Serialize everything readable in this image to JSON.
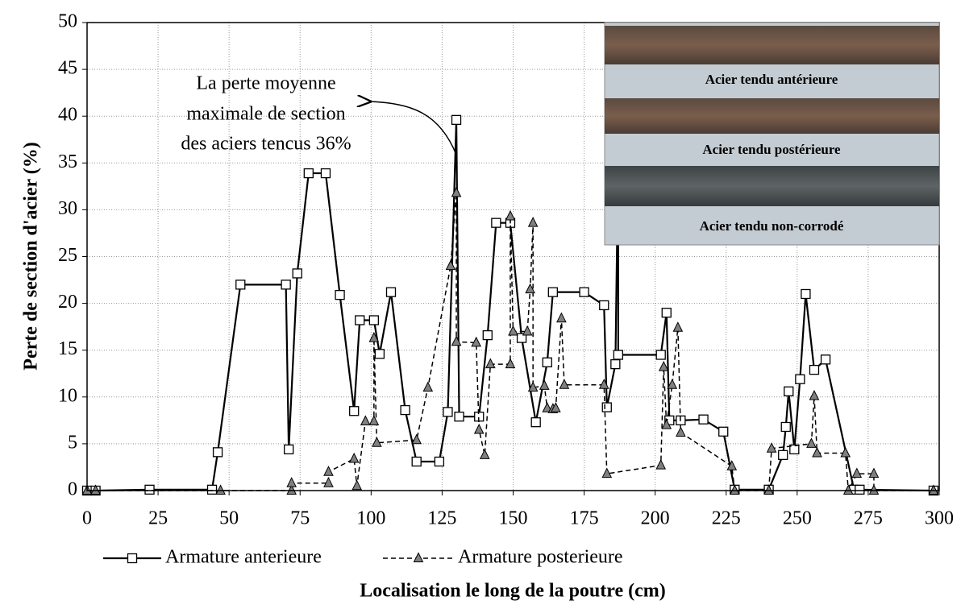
{
  "chart_data": {
    "type": "line",
    "xlabel": "Localisation le long de la poutre (cm)",
    "ylabel": "Perte de section d'acier (%)",
    "xlim": [
      0,
      300
    ],
    "xticks": [
      0,
      25,
      50,
      75,
      100,
      125,
      150,
      175,
      200,
      225,
      250,
      275,
      300
    ],
    "ylim": [
      0,
      50
    ],
    "yticks": [
      0,
      5,
      10,
      15,
      20,
      25,
      30,
      35,
      40,
      45,
      50
    ],
    "grid": true,
    "annotation": [
      "La perte moyenne",
      "maximale de section",
      "des aciers tencus 36%"
    ],
    "inset_labels": [
      "Acier tendu antérieure",
      "Acier tendu postérieure",
      "Acier tendu non-corrodé"
    ],
    "series": [
      {
        "name": "Armature anterieure",
        "color": "#000000",
        "marker": "square",
        "marker_fill": "#ffffff",
        "dashed": false,
        "x": [
          0,
          3,
          22,
          44,
          46,
          54,
          70,
          71,
          74,
          78,
          84,
          89,
          94,
          96,
          101,
          103,
          107,
          112,
          116,
          124,
          127,
          130,
          131,
          138,
          141,
          144,
          149,
          153,
          158,
          162,
          164,
          175,
          182,
          183,
          186,
          187,
          187,
          202,
          204,
          205,
          209,
          217,
          224,
          228,
          240,
          245,
          246,
          247,
          249,
          251,
          253,
          256,
          260,
          270,
          272,
          298
        ],
        "values": [
          0,
          0,
          0.1,
          0.1,
          4.1,
          22,
          22,
          4.4,
          23.2,
          33.9,
          33.9,
          20.9,
          8.5,
          18.2,
          18.2,
          14.6,
          21.2,
          8.6,
          3.1,
          3.1,
          8.4,
          39.6,
          7.9,
          7.9,
          16.6,
          28.6,
          28.6,
          16.3,
          7.3,
          13.7,
          21.2,
          21.2,
          19.8,
          8.9,
          13.5,
          36,
          14.5,
          14.5,
          19,
          7.5,
          7.5,
          7.6,
          6.3,
          0.1,
          0.1,
          3.8,
          6.8,
          10.6,
          4.4,
          11.9,
          21,
          12.9,
          14,
          0.1,
          0.1,
          0
        ]
      },
      {
        "name": "Armature posterieure",
        "color": "#000000",
        "marker": "triangle",
        "marker_fill": "#808080",
        "dashed": true,
        "x": [
          0,
          3,
          47,
          72,
          72,
          85,
          85,
          94,
          95,
          98,
          101,
          101,
          102,
          116,
          120,
          128,
          130,
          130,
          137,
          138,
          140,
          142,
          149,
          149,
          150,
          155,
          156,
          157,
          157,
          161,
          162,
          164,
          165,
          167,
          168,
          182,
          183,
          202,
          203,
          204,
          206,
          208,
          209,
          227,
          228,
          240,
          241,
          255,
          256,
          257,
          267,
          268,
          271,
          277,
          277,
          298
        ],
        "values": [
          0,
          0,
          0,
          0,
          0.8,
          0.8,
          2,
          3.4,
          0.5,
          7.4,
          7.4,
          16.3,
          5.1,
          5.4,
          11,
          24,
          31.8,
          15.9,
          15.8,
          6.5,
          3.8,
          13.5,
          13.5,
          29.3,
          17,
          17,
          21.5,
          28.6,
          11,
          11.2,
          8.8,
          8.7,
          8.8,
          18.4,
          11.3,
          11.3,
          1.8,
          2.7,
          13.2,
          7,
          11.3,
          17.4,
          6.2,
          2.6,
          0,
          0,
          4.5,
          5,
          10.1,
          4,
          4,
          0,
          1.8,
          1.8,
          0,
          0
        ]
      }
    ]
  }
}
